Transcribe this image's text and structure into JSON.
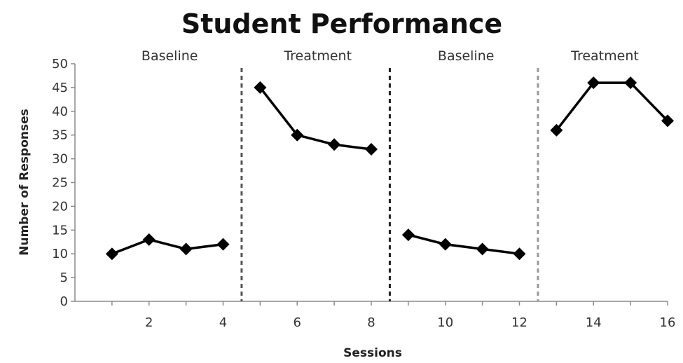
{
  "chart_data": {
    "type": "line",
    "title": "Student Performance",
    "xlabel": "Sessions",
    "ylabel": "Number of Responses",
    "xlim": [
      0,
      16
    ],
    "ylim": [
      0,
      50
    ],
    "xticks": [
      2,
      4,
      6,
      8,
      10,
      12,
      14,
      16
    ],
    "yticks": [
      0,
      5,
      10,
      15,
      20,
      25,
      30,
      35,
      40,
      45,
      50
    ],
    "grid": false,
    "legend": "none",
    "phases": [
      {
        "label": "Baseline",
        "x_start": 0.5,
        "x_end": 4.5
      },
      {
        "label": "Treatment",
        "x_start": 4.5,
        "x_end": 8.5
      },
      {
        "label": "Baseline",
        "x_start": 8.5,
        "x_end": 12.5
      },
      {
        "label": "Treatment",
        "x_start": 12.5,
        "x_end": 16.5
      }
    ],
    "phase_dividers": [
      {
        "x": 4.5,
        "color": "#555555"
      },
      {
        "x": 8.5,
        "color": "#222222"
      },
      {
        "x": 12.5,
        "color": "#999999"
      }
    ],
    "series": [
      {
        "x": [
          1,
          2,
          3,
          4
        ],
        "values": [
          10,
          13,
          11,
          12
        ]
      },
      {
        "x": [
          5,
          6,
          7,
          8
        ],
        "values": [
          45,
          35,
          33,
          32
        ]
      },
      {
        "x": [
          9,
          10,
          11,
          12
        ],
        "values": [
          14,
          12,
          11,
          10
        ]
      },
      {
        "x": [
          13,
          14,
          15,
          16
        ],
        "values": [
          36,
          46,
          46,
          38
        ]
      }
    ],
    "colors": {
      "series": "#000000",
      "axis": "#8a8a8a",
      "text": "#222222"
    },
    "marker": "diamond"
  }
}
